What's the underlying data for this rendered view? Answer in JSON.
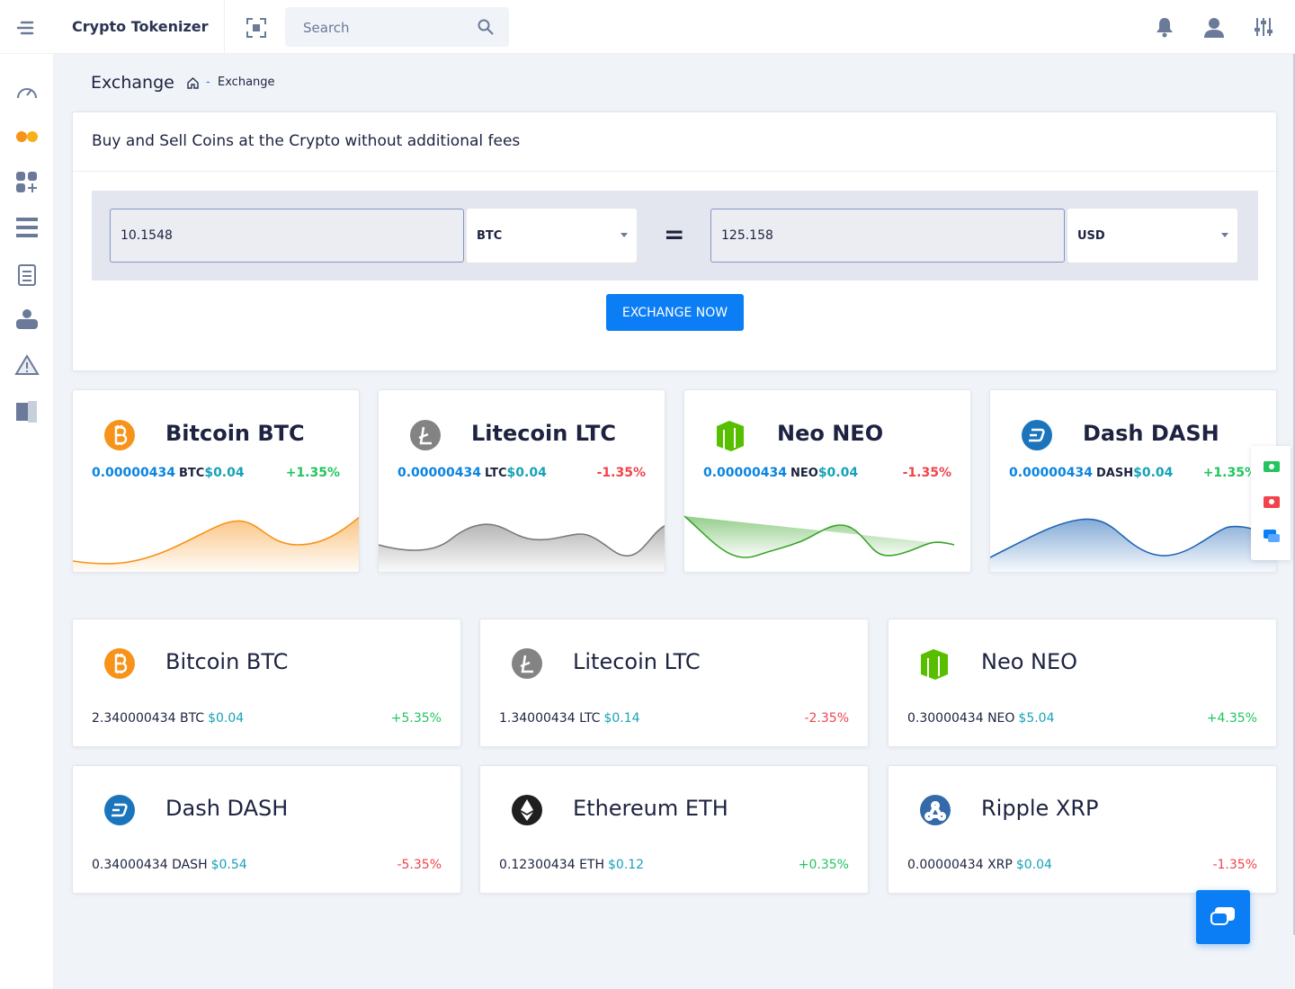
{
  "header": {
    "brand": "Crypto Tokenizer",
    "search_placeholder": "Search"
  },
  "page": {
    "title": "Exchange",
    "breadcrumb": "Exchange"
  },
  "exchange": {
    "heading": "Buy and Sell Coins at the Crypto without additional fees",
    "from_amount": "10.1548",
    "from_currency": "BTC",
    "equals": "=",
    "to_amount": "125.158",
    "to_currency": "USD",
    "button": "EXCHANGE NOW"
  },
  "price_cards": [
    {
      "name": "Bitcoin BTC",
      "amount": "0.00000434",
      "unit": "BTC",
      "price": "$0.04",
      "change": "+1.35%"
    },
    {
      "name": "Litecoin LTC",
      "amount": "0.00000434",
      "unit": "LTC",
      "price": "$0.04",
      "change": "-1.35%"
    },
    {
      "name": "Neo NEO",
      "amount": "0.00000434",
      "unit": "NEO",
      "price": "$0.04",
      "change": "-1.35%"
    },
    {
      "name": "Dash DASH",
      "amount": "0.00000434",
      "unit": "DASH",
      "price": "$0.04",
      "change": "+1.35%"
    }
  ],
  "balance_cards": [
    {
      "name": "Bitcoin BTC",
      "amount": "2.340000434 BTC",
      "price": "$0.04",
      "change": "+5.35%"
    },
    {
      "name": "Litecoin LTC",
      "amount": "1.34000434 LTC",
      "price": "$0.14",
      "change": "-2.35%"
    },
    {
      "name": "Neo NEO",
      "amount": "0.30000434 NEO",
      "price": "$5.04",
      "change": "+4.35%"
    },
    {
      "name": "Dash DASH",
      "amount": "0.34000434 DASH",
      "price": "$0.54",
      "change": "-5.35%"
    },
    {
      "name": "Ethereum ETH",
      "amount": "0.12300434 ETH",
      "price": "$0.12",
      "change": "+0.35%"
    },
    {
      "name": "Ripple XRP",
      "amount": "0.00000434 XRP",
      "price": "$0.04",
      "change": "-1.35%"
    }
  ]
}
